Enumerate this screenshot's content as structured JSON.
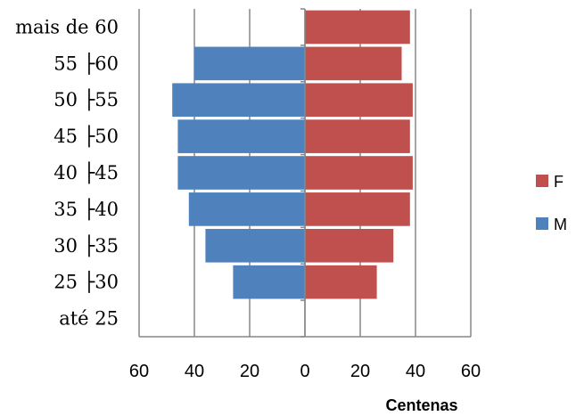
{
  "chart_data": {
    "type": "bar",
    "orientation": "horizontal",
    "layout": "population-pyramid",
    "categories": [
      "até 25",
      "25 ├30",
      "30 ├35",
      "35 ├40",
      "40 ├45",
      "45 ├50",
      "50 ├55",
      "55 ├60",
      "mais de 60"
    ],
    "series": [
      {
        "name": "F",
        "color": "#C0504D",
        "side": "right",
        "values": [
          0,
          26,
          32,
          38,
          39,
          38,
          39,
          35,
          38
        ]
      },
      {
        "name": "M",
        "color": "#4F81BD",
        "side": "left",
        "values": [
          0,
          26,
          36,
          42,
          46,
          46,
          48,
          40,
          0
        ]
      }
    ],
    "xlim": [
      -60,
      60
    ],
    "xticks": [
      -60,
      -40,
      -20,
      0,
      20,
      40,
      60
    ],
    "xtick_labels": [
      "60",
      "40",
      "20",
      "0",
      "20",
      "40",
      "60"
    ],
    "xlabel": "Centenas",
    "ylabel": "",
    "title": "",
    "grid": "vertical",
    "legend_position": "right"
  }
}
